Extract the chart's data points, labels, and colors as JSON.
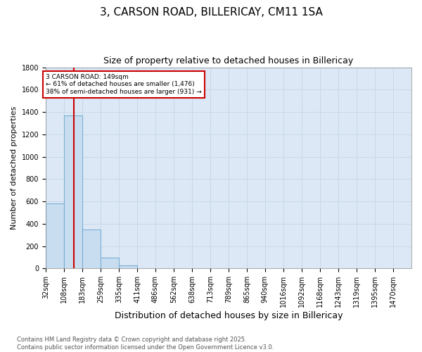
{
  "title": "3, CARSON ROAD, BILLERICAY, CM11 1SA",
  "subtitle": "Size of property relative to detached houses in Billericay",
  "xlabel": "Distribution of detached houses by size in Billericay",
  "ylabel": "Number of detached properties",
  "bar_edges": [
    32,
    108,
    183,
    259,
    335,
    411,
    486,
    562,
    638,
    713,
    789,
    865,
    940,
    1016,
    1092,
    1168,
    1243,
    1319,
    1395,
    1470,
    1546
  ],
  "bar_values": [
    580,
    1370,
    350,
    95,
    25,
    5,
    0,
    0,
    0,
    0,
    0,
    0,
    0,
    0,
    0,
    0,
    0,
    0,
    0,
    0
  ],
  "bar_color": "#c8ddf0",
  "bar_edge_color": "#7aafd4",
  "bar_edge_width": 0.8,
  "red_line_x": 149,
  "red_line_color": "#cc0000",
  "ylim": [
    0,
    1800
  ],
  "yticks": [
    0,
    200,
    400,
    600,
    800,
    1000,
    1200,
    1400,
    1600,
    1800
  ],
  "annotation_text": "3 CARSON ROAD: 149sqm\n← 61% of detached houses are smaller (1,476)\n38% of semi-detached houses are larger (931) →",
  "grid_color": "#c8d8e8",
  "background_color": "#dce8f5",
  "footer_text": "Contains HM Land Registry data © Crown copyright and database right 2025.\nContains public sector information licensed under the Open Government Licence v3.0.",
  "title_fontsize": 11,
  "subtitle_fontsize": 9,
  "xlabel_fontsize": 9,
  "ylabel_fontsize": 8,
  "tick_fontsize": 7,
  "footer_fontsize": 6
}
